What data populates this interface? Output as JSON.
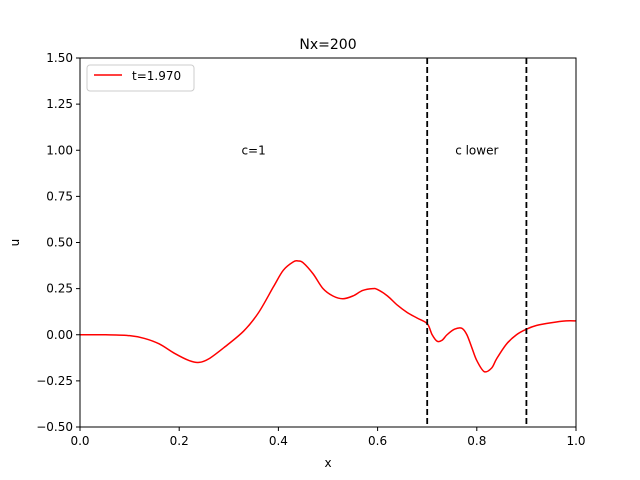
{
  "chart_data": {
    "type": "line",
    "title": "Nx=200",
    "xlabel": "x",
    "ylabel": "u",
    "xlim": [
      0.0,
      1.0
    ],
    "ylim": [
      -0.5,
      1.5
    ],
    "xticks": [
      "0.0",
      "0.2",
      "0.4",
      "0.6",
      "0.8",
      "1.0"
    ],
    "yticks": [
      "−0.50",
      "−0.25",
      "0.00",
      "0.25",
      "0.50",
      "0.75",
      "1.00",
      "1.25",
      "1.50"
    ],
    "grid": false,
    "legend_position": "top-left",
    "series": [
      {
        "name": "t=1.970",
        "color": "#ff0000",
        "x": [
          0.0,
          0.05,
          0.1,
          0.13,
          0.16,
          0.19,
          0.22,
          0.24,
          0.26,
          0.29,
          0.33,
          0.36,
          0.39,
          0.41,
          0.43,
          0.44,
          0.45,
          0.47,
          0.49,
          0.51,
          0.53,
          0.55,
          0.57,
          0.59,
          0.6,
          0.62,
          0.64,
          0.66,
          0.68,
          0.7,
          0.71,
          0.72,
          0.73,
          0.74,
          0.755,
          0.77,
          0.78,
          0.79,
          0.8,
          0.815,
          0.83,
          0.84,
          0.86,
          0.88,
          0.9,
          0.92,
          0.95,
          0.98,
          1.0
        ],
        "values": [
          0.0,
          0.0,
          -0.005,
          -0.02,
          -0.05,
          -0.1,
          -0.14,
          -0.15,
          -0.13,
          -0.07,
          0.02,
          0.12,
          0.26,
          0.35,
          0.395,
          0.4,
          0.39,
          0.33,
          0.25,
          0.21,
          0.195,
          0.21,
          0.24,
          0.25,
          0.245,
          0.21,
          0.16,
          0.12,
          0.09,
          0.06,
          0.0,
          -0.035,
          -0.03,
          0.0,
          0.03,
          0.035,
          0.0,
          -0.07,
          -0.14,
          -0.2,
          -0.18,
          -0.13,
          -0.05,
          0.0,
          0.03,
          0.05,
          0.065,
          0.075,
          0.075
        ]
      }
    ],
    "vlines": [
      0.7,
      0.9
    ],
    "annotations": [
      {
        "text": "c=1",
        "x": 0.35,
        "y": 1.0
      },
      {
        "text": "c lower",
        "x": 0.8,
        "y": 1.0
      }
    ]
  }
}
